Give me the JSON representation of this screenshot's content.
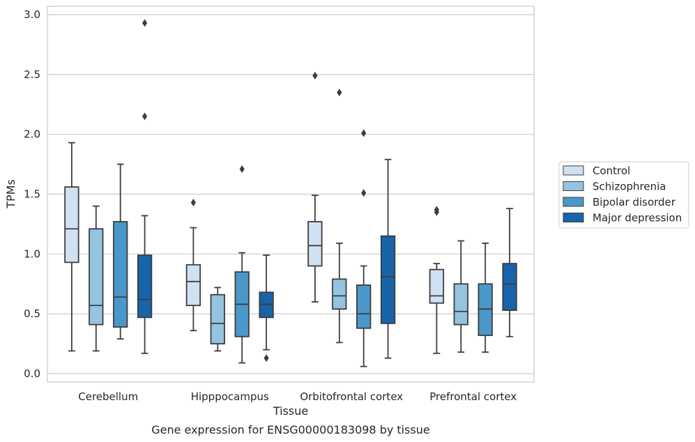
{
  "chart_data": {
    "type": "box",
    "title": "",
    "caption": "Gene expression for ENSG00000183098 by tissue",
    "xlabel": "Tissue",
    "ylabel": "TPMs",
    "ylim": [
      -0.07,
      3.07
    ],
    "yticks": [
      "0.0",
      "0.5",
      "1.0",
      "1.5",
      "2.0",
      "2.5",
      "3.0"
    ],
    "grid": "horizontal",
    "legend_position": "outside-right",
    "categories": [
      "Cerebellum",
      "Hipppocampus",
      "Orbitofrontal cortex",
      "Prefrontal cortex"
    ],
    "series": [
      {
        "name": "Control",
        "color": "#d0e1f2",
        "boxes": [
          {
            "q1": 0.93,
            "median": 1.21,
            "q3": 1.56,
            "whisker_low": 0.19,
            "whisker_high": 1.93,
            "outliers": []
          },
          {
            "q1": 0.57,
            "median": 0.77,
            "q3": 0.91,
            "whisker_low": 0.36,
            "whisker_high": 1.22,
            "outliers": [
              1.43
            ]
          },
          {
            "q1": 0.9,
            "median": 1.07,
            "q3": 1.27,
            "whisker_low": 0.6,
            "whisker_high": 1.49,
            "outliers": [
              2.49
            ]
          },
          {
            "q1": 0.59,
            "median": 0.65,
            "q3": 0.87,
            "whisker_low": 0.17,
            "whisker_high": 0.92,
            "outliers": [
              1.35,
              1.37
            ]
          }
        ]
      },
      {
        "name": "Schizophrenia",
        "color": "#94c4df",
        "boxes": [
          {
            "q1": 0.41,
            "median": 0.57,
            "q3": 1.21,
            "whisker_low": 0.19,
            "whisker_high": 1.4,
            "outliers": []
          },
          {
            "q1": 0.25,
            "median": 0.42,
            "q3": 0.66,
            "whisker_low": 0.19,
            "whisker_high": 0.72,
            "outliers": []
          },
          {
            "q1": 0.54,
            "median": 0.65,
            "q3": 0.79,
            "whisker_low": 0.26,
            "whisker_high": 1.09,
            "outliers": [
              2.35
            ]
          },
          {
            "q1": 0.41,
            "median": 0.52,
            "q3": 0.75,
            "whisker_low": 0.18,
            "whisker_high": 1.11,
            "outliers": []
          }
        ]
      },
      {
        "name": "Bipolar disorder",
        "color": "#4a98c9",
        "boxes": [
          {
            "q1": 0.39,
            "median": 0.64,
            "q3": 1.27,
            "whisker_low": 0.29,
            "whisker_high": 1.75,
            "outliers": []
          },
          {
            "q1": 0.31,
            "median": 0.58,
            "q3": 0.85,
            "whisker_low": 0.09,
            "whisker_high": 1.01,
            "outliers": [
              1.71
            ]
          },
          {
            "q1": 0.38,
            "median": 0.5,
            "q3": 0.74,
            "whisker_low": 0.06,
            "whisker_high": 0.9,
            "outliers": [
              1.51,
              2.01
            ]
          },
          {
            "q1": 0.32,
            "median": 0.54,
            "q3": 0.75,
            "whisker_low": 0.18,
            "whisker_high": 1.09,
            "outliers": []
          }
        ]
      },
      {
        "name": "Major depression",
        "color": "#1764ab",
        "boxes": [
          {
            "q1": 0.47,
            "median": 0.62,
            "q3": 0.99,
            "whisker_low": 0.17,
            "whisker_high": 1.32,
            "outliers": [
              2.15,
              2.93
            ]
          },
          {
            "q1": 0.47,
            "median": 0.58,
            "q3": 0.68,
            "whisker_low": 0.2,
            "whisker_high": 0.99,
            "outliers": [
              0.13
            ]
          },
          {
            "q1": 0.42,
            "median": 0.81,
            "q3": 1.15,
            "whisker_low": 0.13,
            "whisker_high": 1.79,
            "outliers": []
          },
          {
            "q1": 0.53,
            "median": 0.75,
            "q3": 0.92,
            "whisker_low": 0.31,
            "whisker_high": 1.38,
            "outliers": []
          }
        ]
      }
    ],
    "colors": {
      "grid": "#cccccc",
      "frame": "#cccccc",
      "box_edge": "#3d3d3d",
      "text": "#262626"
    }
  }
}
